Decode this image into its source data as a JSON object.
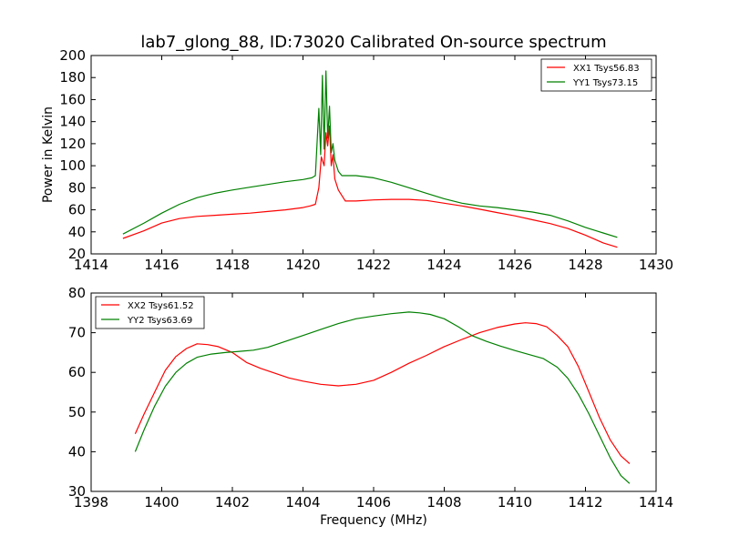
{
  "chart_data": [
    {
      "type": "line",
      "title": "lab7_glong_88, ID:73020 Calibrated On-source spectrum",
      "xlabel": "",
      "ylabel": "Power in Kelvin",
      "xlim": [
        1414,
        1430
      ],
      "ylim": [
        20,
        200
      ],
      "xticks": [
        1414,
        1416,
        1418,
        1420,
        1422,
        1424,
        1426,
        1428,
        1430
      ],
      "yticks": [
        20,
        40,
        60,
        80,
        100,
        120,
        140,
        160,
        180,
        200
      ],
      "legend_position": "top-right",
      "series": [
        {
          "name": "XX1 Tsys56.83",
          "color": "#ff0000",
          "x": [
            1414.9,
            1415.5,
            1416.0,
            1416.5,
            1417.0,
            1417.5,
            1418.0,
            1418.5,
            1419.0,
            1419.5,
            1420.0,
            1420.2,
            1420.35,
            1420.45,
            1420.52,
            1420.6,
            1420.65,
            1420.7,
            1420.75,
            1420.8,
            1420.85,
            1420.9,
            1421.0,
            1421.2,
            1421.5,
            1422.0,
            1422.5,
            1423.0,
            1423.5,
            1424.0,
            1424.5,
            1425.0,
            1425.5,
            1426.0,
            1426.5,
            1427.0,
            1427.5,
            1428.0,
            1428.5,
            1428.9
          ],
          "values": [
            34,
            41,
            48,
            52,
            54,
            55,
            56,
            57,
            58.5,
            60,
            62,
            63.5,
            65,
            80,
            108,
            100,
            130,
            118,
            136,
            100,
            110,
            88,
            78,
            68,
            68,
            69,
            69.5,
            69.5,
            68.5,
            66,
            63.5,
            60.5,
            57.5,
            54.5,
            51,
            47.5,
            43,
            37,
            30,
            26
          ]
        },
        {
          "name": "YY1 Tsys73.15",
          "color": "#008000",
          "x": [
            1414.9,
            1415.5,
            1416.0,
            1416.5,
            1417.0,
            1417.5,
            1418.0,
            1418.5,
            1419.0,
            1419.5,
            1420.0,
            1420.25,
            1420.35,
            1420.45,
            1420.5,
            1420.55,
            1420.6,
            1420.65,
            1420.7,
            1420.75,
            1420.8,
            1420.85,
            1420.9,
            1421.0,
            1421.1,
            1421.3,
            1421.5,
            1422.0,
            1422.5,
            1423.0,
            1423.5,
            1424.0,
            1424.5,
            1425.0,
            1425.5,
            1426.0,
            1426.5,
            1427.0,
            1427.5,
            1428.0,
            1428.5,
            1428.9
          ],
          "values": [
            38,
            48,
            57,
            65,
            71,
            75,
            78,
            80.5,
            83,
            85.5,
            87.5,
            89,
            91,
            152,
            110,
            182,
            115,
            186,
            125,
            154,
            112,
            120,
            105,
            95,
            91,
            91,
            91,
            89,
            85,
            80,
            75,
            70,
            66,
            63.5,
            62,
            60,
            58,
            55,
            50,
            44,
            39,
            35
          ]
        }
      ]
    },
    {
      "type": "line",
      "title": "",
      "xlabel": "Frequency (MHz)",
      "ylabel": "",
      "xlim": [
        1398,
        1414
      ],
      "ylim": [
        30,
        80
      ],
      "xticks": [
        1398,
        1400,
        1402,
        1404,
        1406,
        1408,
        1410,
        1412,
        1414
      ],
      "yticks": [
        30,
        40,
        50,
        60,
        70,
        80
      ],
      "legend_position": "top-left",
      "series": [
        {
          "name": "XX2 Tsys61.52",
          "color": "#ff0000",
          "x": [
            1399.25,
            1399.5,
            1399.8,
            1400.1,
            1400.4,
            1400.7,
            1401.0,
            1401.3,
            1401.6,
            1402.0,
            1402.4,
            1402.8,
            1403.2,
            1403.6,
            1404.0,
            1404.5,
            1405.0,
            1405.5,
            1406.0,
            1406.5,
            1407.0,
            1407.5,
            1408.0,
            1408.5,
            1409.0,
            1409.5,
            1410.0,
            1410.3,
            1410.6,
            1410.9,
            1411.2,
            1411.5,
            1411.8,
            1412.1,
            1412.4,
            1412.7,
            1413.0,
            1413.25
          ],
          "values": [
            44.5,
            49.5,
            55,
            60.5,
            64,
            66,
            67.2,
            67,
            66.5,
            65,
            62.5,
            61,
            59.8,
            58.6,
            57.8,
            57,
            56.6,
            57,
            58,
            60,
            62.3,
            64.3,
            66.5,
            68.3,
            70,
            71.3,
            72.2,
            72.5,
            72.3,
            71.5,
            69.3,
            66.5,
            61.5,
            55,
            48.5,
            43,
            39,
            37
          ]
        },
        {
          "name": "YY2 Tsys63.69",
          "color": "#008000",
          "x": [
            1399.25,
            1399.5,
            1399.8,
            1400.1,
            1400.4,
            1400.7,
            1401.0,
            1401.4,
            1401.8,
            1402.2,
            1402.6,
            1403.0,
            1403.5,
            1404.0,
            1404.5,
            1405.0,
            1405.5,
            1406.0,
            1406.5,
            1407.0,
            1407.3,
            1407.6,
            1408.0,
            1408.4,
            1408.8,
            1409.2,
            1409.6,
            1410.0,
            1410.4,
            1410.8,
            1411.2,
            1411.5,
            1411.8,
            1412.1,
            1412.4,
            1412.7,
            1413.0,
            1413.25
          ],
          "values": [
            40,
            45.5,
            51.5,
            56.5,
            60,
            62.3,
            63.8,
            64.6,
            65,
            65.3,
            65.6,
            66.3,
            67.8,
            69.3,
            70.8,
            72.3,
            73.5,
            74.2,
            74.8,
            75.2,
            75,
            74.6,
            73.5,
            71.5,
            69.2,
            67.8,
            66.6,
            65.5,
            64.5,
            63.5,
            61.3,
            58.5,
            54.5,
            49.5,
            44,
            38.5,
            34,
            32
          ]
        }
      ]
    }
  ]
}
